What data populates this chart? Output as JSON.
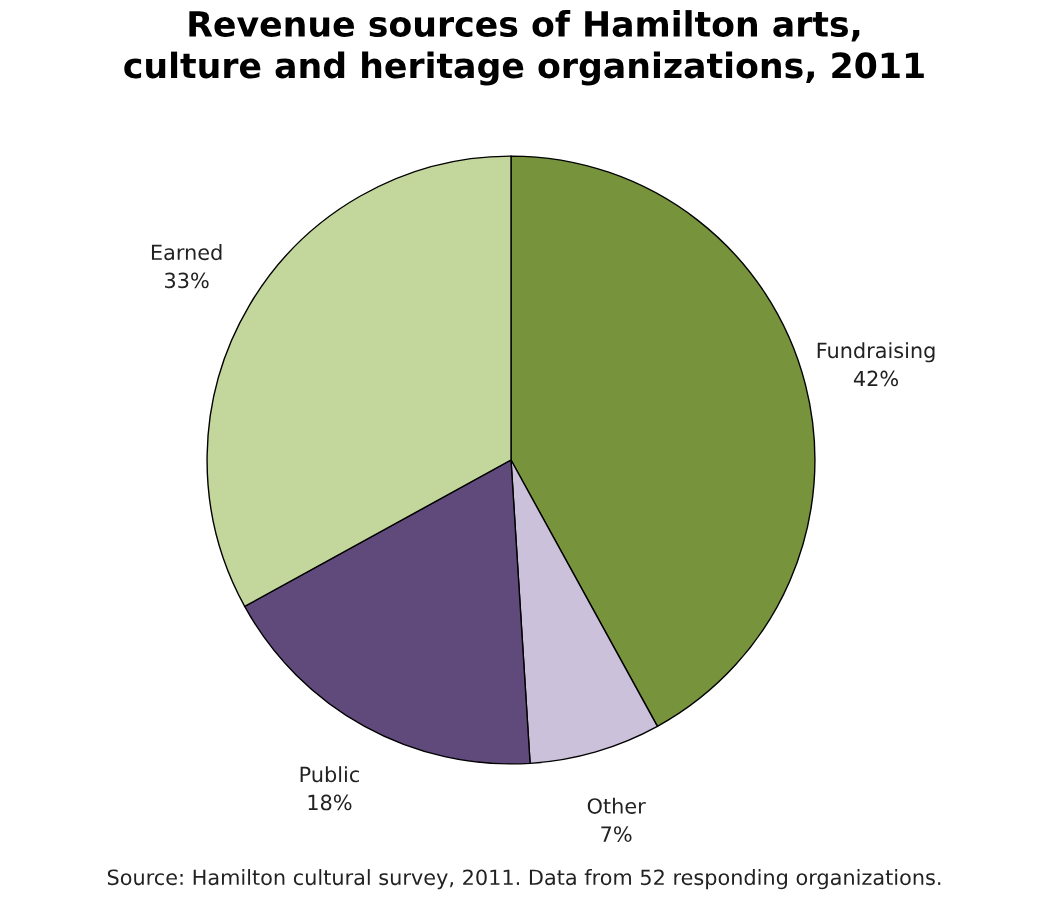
{
  "chart_data": {
    "type": "pie",
    "title": "Revenue sources of Hamilton arts,\nculture and heritage organizations, 2011",
    "categories": [
      "Fundraising",
      "Other",
      "Public",
      "Earned"
    ],
    "values": [
      42,
      7,
      18,
      33
    ],
    "colors": [
      "#77933c",
      "#ccc1da",
      "#604a7b",
      "#c3d69b"
    ],
    "value_labels": [
      "42%",
      "7%",
      "18%",
      "33%"
    ],
    "legend": false,
    "annotations": [
      "Source: Hamilton cultural survey, 2011. Data from 52 responding organizations."
    ]
  }
}
